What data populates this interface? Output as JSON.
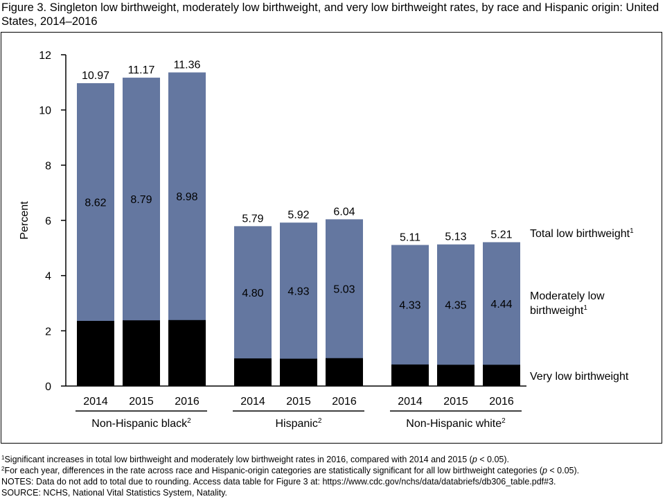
{
  "title": "Figure 3. Singleton low birthweight, moderately low birthweight, and very low birthweight rates, by race and Hispanic origin: United States, 2014–2016",
  "colors": {
    "moderately_low": "#6477a0",
    "very_low": "#000000",
    "axis": "#000000"
  },
  "chart_data": {
    "type": "bar",
    "stacked": true,
    "ylabel": "Percent",
    "ylim": [
      0,
      12
    ],
    "yticks": [
      0,
      2,
      4,
      6,
      8,
      10,
      12
    ],
    "groups": [
      {
        "label": "Non-Hispanic black",
        "sup": "2",
        "years": [
          "2014",
          "2015",
          "2016"
        ],
        "very_low": [
          2.36,
          2.38,
          2.39
        ],
        "moderately_low": [
          8.62,
          8.79,
          8.98
        ],
        "total": [
          10.97,
          11.17,
          11.36
        ]
      },
      {
        "label": "Hispanic",
        "sup": "2",
        "years": [
          "2014",
          "2015",
          "2016"
        ],
        "very_low": [
          1.0,
          0.99,
          1.01
        ],
        "moderately_low": [
          4.8,
          4.93,
          5.03
        ],
        "total": [
          5.79,
          5.92,
          6.04
        ]
      },
      {
        "label": "Non-Hispanic white",
        "sup": "2",
        "years": [
          "2014",
          "2015",
          "2016"
        ],
        "very_low": [
          0.78,
          0.77,
          0.77
        ],
        "moderately_low": [
          4.33,
          4.35,
          4.44
        ],
        "total": [
          5.11,
          5.13,
          5.21
        ]
      }
    ],
    "series_labels": {
      "total": {
        "text": "Total low birthweight",
        "sup": "1"
      },
      "moderately_low": {
        "line1": "Moderately low",
        "line2": "birthweight",
        "sup": "1"
      },
      "very_low": {
        "text": "Very low birthweight"
      }
    }
  },
  "notes": {
    "fn1_sup": "1",
    "fn1_a": "Significant increases in total low birthweight and moderately low birthweight rates in 2016, compared with 2014 and 2015 (",
    "fn1_p": "p",
    "fn1_b": " < 0.05).",
    "fn2_sup": "2",
    "fn2_a": "For each year, differences in the rate across race and Hispanic-origin categories are statistically significant for all low birthweight categories (",
    "fn2_p": "p",
    "fn2_b": " < 0.05).",
    "notes_line": "NOTES: Data do not add to total due to rounding. Access data table for Figure 3 at: https://www.cdc.gov/nchs/data/databriefs/db306_table.pdf#3.",
    "source_line": "SOURCE: NCHS, National Vital Statistics System, Natality."
  }
}
